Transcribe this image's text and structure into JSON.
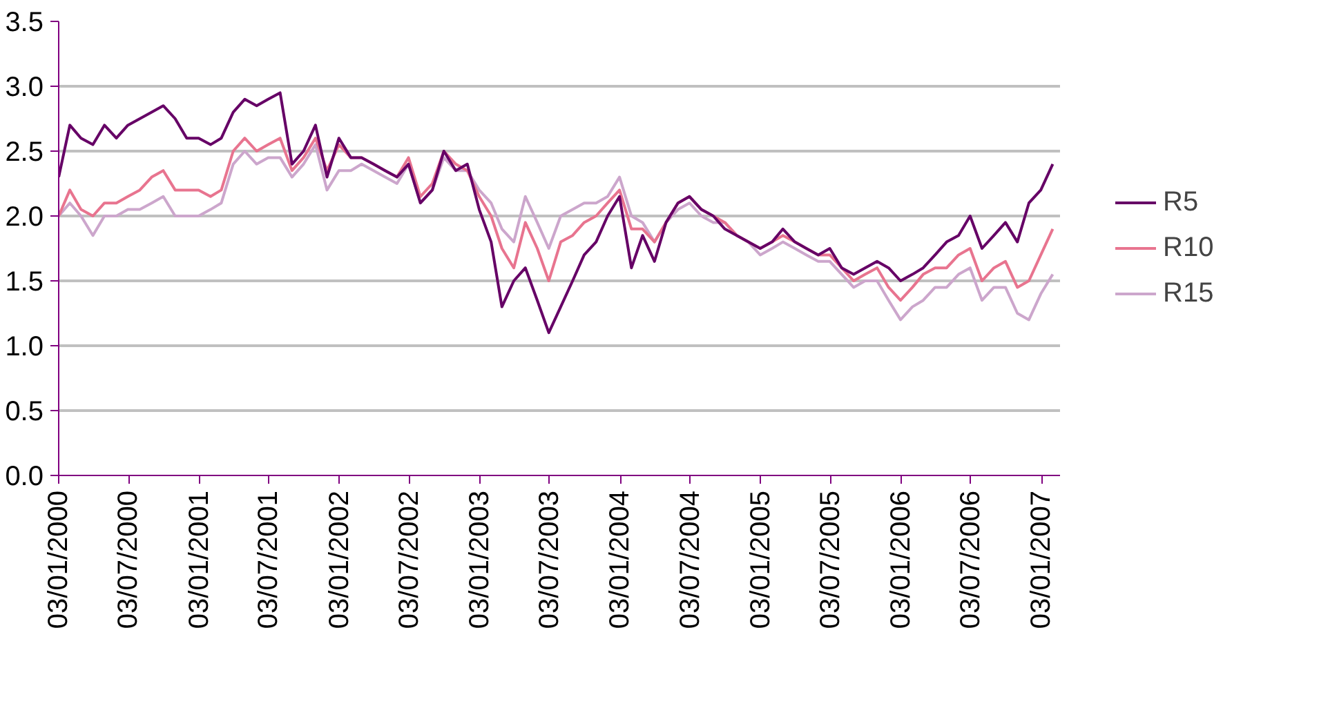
{
  "chart_data": {
    "type": "line",
    "x": [
      "2000-01-03",
      "2000-02",
      "2000-03",
      "2000-04",
      "2000-05",
      "2000-06",
      "2000-07",
      "2000-08",
      "2000-09",
      "2000-10",
      "2000-11",
      "2000-12",
      "2001-01",
      "2001-02",
      "2001-03",
      "2001-04",
      "2001-05",
      "2001-06",
      "2001-07",
      "2001-08",
      "2001-09",
      "2001-10",
      "2001-11",
      "2001-12",
      "2002-01",
      "2002-02",
      "2002-03",
      "2002-04",
      "2002-05",
      "2002-06",
      "2002-07",
      "2002-08",
      "2002-09",
      "2002-10",
      "2002-11",
      "2002-12",
      "2003-01",
      "2003-02",
      "2003-03",
      "2003-04",
      "2003-05",
      "2003-06",
      "2003-07",
      "2003-08",
      "2003-09",
      "2003-10",
      "2003-11",
      "2003-12",
      "2004-01",
      "2004-02",
      "2004-03",
      "2004-04",
      "2004-05",
      "2004-06",
      "2004-07",
      "2004-08",
      "2004-09",
      "2004-10",
      "2004-11",
      "2004-12",
      "2005-01",
      "2005-02",
      "2005-03",
      "2005-04",
      "2005-05",
      "2005-06",
      "2005-07",
      "2005-08",
      "2005-09",
      "2005-10",
      "2005-11",
      "2005-12",
      "2006-01",
      "2006-02",
      "2006-03",
      "2006-04",
      "2006-05",
      "2006-06",
      "2006-07",
      "2006-08",
      "2006-09",
      "2006-10",
      "2006-11",
      "2006-12",
      "2007-01",
      "2007-02"
    ],
    "series": [
      {
        "name": "R5",
        "color": "#660066",
        "values": [
          2.3,
          2.7,
          2.6,
          2.55,
          2.7,
          2.6,
          2.7,
          2.75,
          2.8,
          2.85,
          2.75,
          2.6,
          2.6,
          2.55,
          2.6,
          2.8,
          2.9,
          2.85,
          2.9,
          2.95,
          2.4,
          2.5,
          2.7,
          2.3,
          2.6,
          2.45,
          2.45,
          2.4,
          2.35,
          2.3,
          2.4,
          2.1,
          2.2,
          2.5,
          2.35,
          2.4,
          2.05,
          1.8,
          1.3,
          1.5,
          1.6,
          1.35,
          1.1,
          1.3,
          1.5,
          1.7,
          1.8,
          2.0,
          2.15,
          1.6,
          1.85,
          1.65,
          1.95,
          2.1,
          2.15,
          2.05,
          2.0,
          1.9,
          1.85,
          1.8,
          1.75,
          1.8,
          1.9,
          1.8,
          1.75,
          1.7,
          1.75,
          1.6,
          1.55,
          1.6,
          1.65,
          1.6,
          1.5,
          1.55,
          1.6,
          1.7,
          1.8,
          1.85,
          2.0,
          1.75,
          1.85,
          1.95,
          1.8,
          2.1,
          2.2,
          2.4
        ]
      },
      {
        "name": "R10",
        "color": "#e8748f",
        "values": [
          2.0,
          2.2,
          2.05,
          2.0,
          2.1,
          2.1,
          2.15,
          2.2,
          2.3,
          2.35,
          2.2,
          2.2,
          2.2,
          2.15,
          2.2,
          2.5,
          2.6,
          2.5,
          2.55,
          2.6,
          2.35,
          2.45,
          2.6,
          2.35,
          2.55,
          2.45,
          2.45,
          2.4,
          2.35,
          2.3,
          2.45,
          2.15,
          2.25,
          2.5,
          2.4,
          2.35,
          2.15,
          2.0,
          1.75,
          1.6,
          1.95,
          1.75,
          1.5,
          1.8,
          1.85,
          1.95,
          2.0,
          2.1,
          2.2,
          1.9,
          1.9,
          1.8,
          1.95,
          2.1,
          2.15,
          2.05,
          2.0,
          1.95,
          1.85,
          1.8,
          1.75,
          1.8,
          1.85,
          1.8,
          1.75,
          1.7,
          1.7,
          1.6,
          1.5,
          1.55,
          1.6,
          1.45,
          1.35,
          1.45,
          1.55,
          1.6,
          1.6,
          1.7,
          1.75,
          1.5,
          1.6,
          1.65,
          1.45,
          1.5,
          1.7,
          1.9
        ]
      },
      {
        "name": "R15",
        "color": "#cca6cc",
        "values": [
          2.0,
          2.1,
          2.0,
          1.85,
          2.0,
          2.0,
          2.05,
          2.05,
          2.1,
          2.15,
          2.0,
          2.0,
          2.0,
          2.05,
          2.1,
          2.4,
          2.5,
          2.4,
          2.45,
          2.45,
          2.3,
          2.4,
          2.55,
          2.2,
          2.35,
          2.35,
          2.4,
          2.35,
          2.3,
          2.25,
          2.4,
          2.1,
          2.2,
          2.45,
          2.35,
          2.35,
          2.2,
          2.1,
          1.9,
          1.8,
          2.15,
          1.95,
          1.75,
          2.0,
          2.05,
          2.1,
          2.1,
          2.15,
          2.3,
          2.0,
          1.95,
          1.8,
          1.95,
          2.05,
          2.1,
          2.0,
          1.95,
          1.95,
          1.85,
          1.8,
          1.7,
          1.75,
          1.8,
          1.75,
          1.7,
          1.65,
          1.65,
          1.55,
          1.45,
          1.5,
          1.5,
          1.35,
          1.2,
          1.3,
          1.35,
          1.45,
          1.45,
          1.55,
          1.6,
          1.35,
          1.45,
          1.45,
          1.25,
          1.2,
          1.4,
          1.55
        ]
      }
    ],
    "xlim": [
      "2000-01-03",
      "2007-02-20"
    ],
    "xticks": [
      {
        "value": "2000-01-03",
        "label": "03/01/2000"
      },
      {
        "value": "2000-07-03",
        "label": "03/07/2000"
      },
      {
        "value": "2001-01-03",
        "label": "03/01/2001"
      },
      {
        "value": "2001-07-03",
        "label": "03/07/2001"
      },
      {
        "value": "2002-01-03",
        "label": "03/01/2002"
      },
      {
        "value": "2002-07-03",
        "label": "03/07/2002"
      },
      {
        "value": "2003-01-03",
        "label": "03/01/2003"
      },
      {
        "value": "2003-07-03",
        "label": "03/07/2003"
      },
      {
        "value": "2004-01-03",
        "label": "03/01/2004"
      },
      {
        "value": "2004-07-03",
        "label": "03/07/2004"
      },
      {
        "value": "2005-01-03",
        "label": "03/01/2005"
      },
      {
        "value": "2005-07-03",
        "label": "03/07/2005"
      },
      {
        "value": "2006-01-03",
        "label": "03/01/2006"
      },
      {
        "value": "2006-07-03",
        "label": "03/07/2006"
      },
      {
        "value": "2007-01-03",
        "label": "03/01/2007"
      }
    ],
    "ylim": [
      0,
      3.5
    ],
    "yticks": [
      {
        "value": 0,
        "label": "0.0"
      },
      {
        "value": 0.5,
        "label": "0.5"
      },
      {
        "value": 1,
        "label": "1.0"
      },
      {
        "value": 1.5,
        "label": "1.5"
      },
      {
        "value": 2,
        "label": "2.0"
      },
      {
        "value": 2.5,
        "label": "2.5"
      },
      {
        "value": 3,
        "label": "3.0"
      },
      {
        "value": 3.5,
        "label": "3.5"
      }
    ],
    "grid": "y",
    "legend": "right",
    "line_style": "solid",
    "marker": "none"
  }
}
